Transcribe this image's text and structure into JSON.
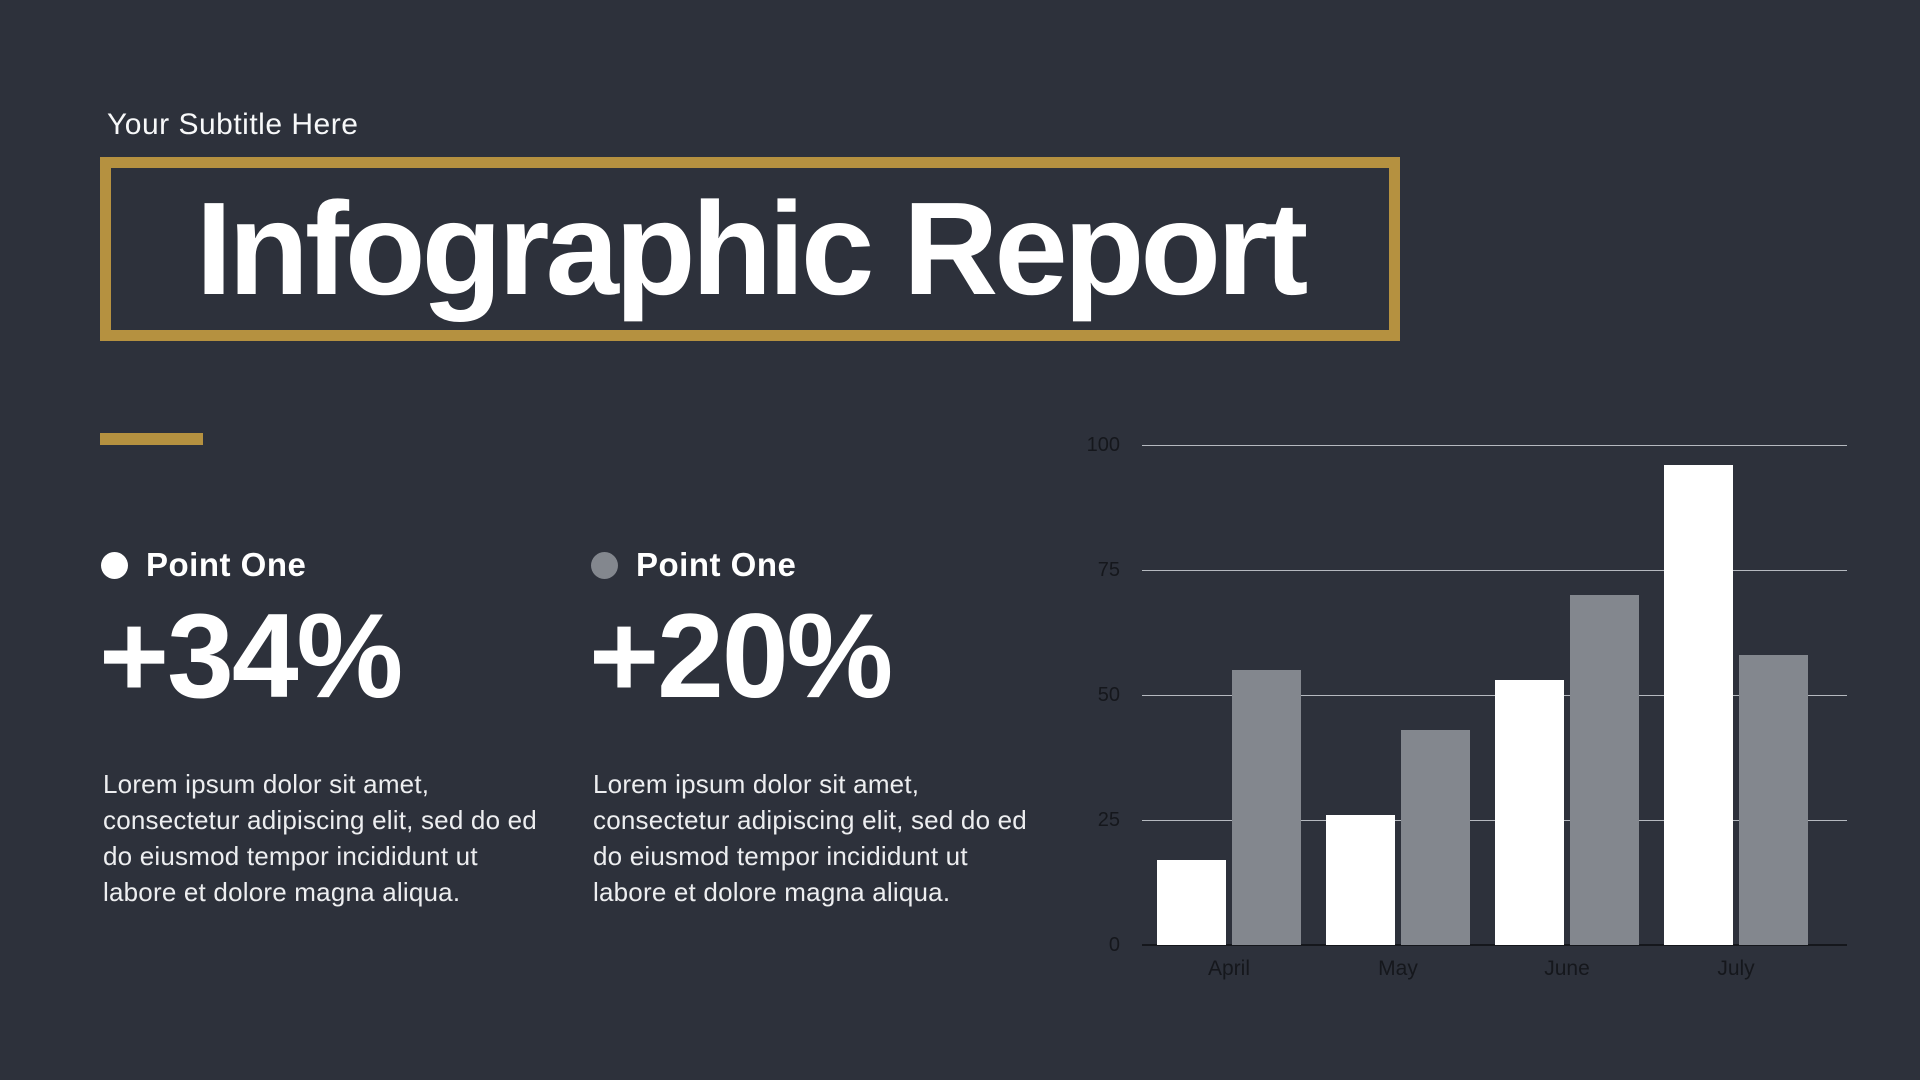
{
  "colors": {
    "background": "#2d313b",
    "accent_gold": "#b59140",
    "series_white": "#ffffff",
    "series_gray": "#83878e",
    "body_text": "#edeef0",
    "axis_text": "#15171c",
    "gridline": "#ced1d7"
  },
  "header": {
    "subtitle": "Your Subtitle Here",
    "title": "Infographic Report"
  },
  "points": [
    {
      "label": "Point One",
      "value": "+34%",
      "bullet": "white",
      "description": "Lorem ipsum dolor sit amet, consectetur adipiscing elit, sed do ed do eiusmod tempor incididunt ut labore et dolore magna aliqua."
    },
    {
      "label": "Point One",
      "value": "+20%",
      "bullet": "gray",
      "description": "Lorem ipsum dolor sit amet, consectetur adipiscing elit, sed do ed do eiusmod tempor incididunt ut labore et dolore magna aliqua."
    }
  ],
  "chart_data": {
    "type": "bar",
    "categories": [
      "April",
      "May",
      "June",
      "July"
    ],
    "series": [
      {
        "name": "white",
        "color": "#ffffff",
        "values": [
          17,
          26,
          53,
          96
        ]
      },
      {
        "name": "gray",
        "color": "#83878e",
        "values": [
          55,
          43,
          70,
          58
        ]
      }
    ],
    "title": "",
    "xlabel": "",
    "ylabel": "",
    "ylim": [
      0,
      100
    ],
    "yticks": [
      0,
      25,
      50,
      75,
      100
    ],
    "grid": true,
    "legend_position": "none"
  }
}
